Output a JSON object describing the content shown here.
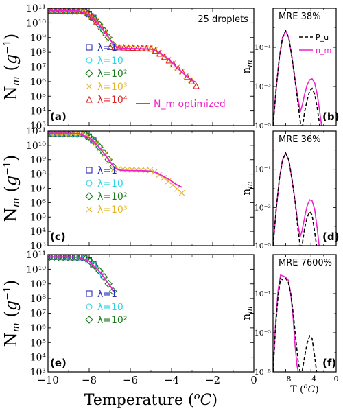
{
  "chart_data": [
    {
      "id": "a",
      "type": "scatter",
      "panel_label": "(a)",
      "annotation": "25 droplets",
      "ylabel": "N_m (g^-1)",
      "xlabel": "",
      "xlim": [
        -10,
        0
      ],
      "ylim": [
        1000,
        100000000000
      ],
      "yscale": "log",
      "series": [
        {
          "name": "λ=1",
          "marker": "square",
          "color": "#2a2ab8",
          "T_end": -7.8
        },
        {
          "name": "λ=10",
          "marker": "circle",
          "color": "#2fd3e6",
          "T_end": -7.2
        },
        {
          "name": "λ=10²",
          "marker": "diamond",
          "color": "#1a7a1a",
          "T_end": -6.8
        },
        {
          "name": "λ=10³",
          "marker": "x",
          "color": "#e6b422",
          "T_end": -2.9
        },
        {
          "name": "λ=10⁴",
          "marker": "triangle",
          "color": "#e02020",
          "T_end": -2.8
        }
      ],
      "fit": {
        "name": "N_m optimized",
        "color": "#ee22cc",
        "x": [
          -10,
          -9,
          -8.5,
          -8,
          -7.6,
          -7.3,
          -7,
          -6.8,
          -6.6,
          -6.4,
          -6,
          -5.5,
          -5,
          -4.8,
          -4.5,
          -4.2,
          -3.9,
          -3.6,
          -3.3,
          -3.0,
          -2.8
        ],
        "y": [
          70000000000,
          70000000000,
          65000000000,
          35000000000,
          10000000000,
          3000000000,
          800000000,
          300000000,
          200000000,
          180000000,
          175000000,
          170000000,
          160000000,
          130000000,
          80000000,
          40000000,
          15000000,
          6000000,
          2500000,
          1200000,
          900000
        ]
      }
    },
    {
      "id": "b",
      "type": "line",
      "panel_label": "(b)",
      "annotation": "MRE 38%",
      "ylabel": "n_m",
      "xlim": [
        -10,
        0
      ],
      "ylim": [
        1e-05,
        10
      ],
      "yscale": "log",
      "series": [
        {
          "name": "P_u",
          "color": "#000000",
          "dash": true,
          "x": [
            -10,
            -9.5,
            -9,
            -8.5,
            -8,
            -7.5,
            -7,
            -6.5,
            -6,
            -5.6,
            -5.3,
            -5,
            -4.6,
            -4.2,
            -3.8,
            -3.4,
            -3,
            -2.6
          ],
          "y": [
            1e-05,
            0.0008,
            0.03,
            0.3,
            0.7,
            0.3,
            0.03,
            0.002,
            0.0001,
            1e-05,
            1e-05,
            5e-05,
            0.0002,
            0.0006,
            0.0008,
            0.0004,
            8e-05,
            1e-05
          ]
        },
        {
          "name": "n_m",
          "color": "#ee22cc",
          "dash": false,
          "x": [
            -10,
            -9.5,
            -9,
            -8.5,
            -8,
            -7.5,
            -7,
            -6.5,
            -6,
            -5.7,
            -5.4,
            -5,
            -4.6,
            -4.2,
            -3.8,
            -3.4,
            -3,
            -2.6,
            -2.3
          ],
          "y": [
            1e-05,
            0.0008,
            0.03,
            0.3,
            0.7,
            0.3,
            0.03,
            0.002,
            0.0002,
            5e-05,
            0.0001,
            0.0004,
            0.0012,
            0.0022,
            0.0025,
            0.0015,
            0.0004,
            5e-05,
            1e-05
          ]
        }
      ]
    },
    {
      "id": "c",
      "type": "scatter",
      "panel_label": "(c)",
      "ylabel": "N_m (g^-1)",
      "xlim": [
        -10,
        0
      ],
      "ylim": [
        1000,
        100000000000
      ],
      "yscale": "log",
      "series": [
        {
          "name": "λ=1",
          "marker": "square",
          "color": "#2a2ab8",
          "T_end": -7.8
        },
        {
          "name": "λ=10",
          "marker": "circle",
          "color": "#2fd3e6",
          "T_end": -7.2
        },
        {
          "name": "λ=10²",
          "marker": "diamond",
          "color": "#1a7a1a",
          "T_end": -6.8
        },
        {
          "name": "λ=10³",
          "marker": "x",
          "color": "#e6b422",
          "T_end": -3.5
        }
      ],
      "fit": {
        "name": "",
        "color": "#ee22cc",
        "x": [
          -10,
          -9,
          -8.5,
          -8,
          -7.6,
          -7.3,
          -7,
          -6.8,
          -6.6,
          -6.4,
          -6,
          -5.5,
          -5,
          -4.7,
          -4.4,
          -4.1,
          -3.8,
          -3.5
        ],
        "y": [
          70000000000,
          70000000000,
          65000000000,
          35000000000,
          10000000000,
          3000000000,
          800000000,
          300000000,
          200000000,
          180000000,
          175000000,
          170000000,
          160000000,
          120000000,
          70000000,
          40000000,
          20000000,
          12000000
        ]
      }
    },
    {
      "id": "d",
      "type": "line",
      "panel_label": "(d)",
      "annotation": "MRE 36%",
      "ylabel": "n_m",
      "xlim": [
        -10,
        0
      ],
      "ylim": [
        1e-05,
        10
      ],
      "yscale": "log",
      "series": [
        {
          "name": "P_u",
          "color": "#000000",
          "dash": true,
          "x": [
            -10,
            -9.5,
            -9,
            -8.5,
            -8,
            -7.5,
            -7,
            -6.5,
            -6,
            -5.7,
            -5.4,
            -5,
            -4.6,
            -4.2,
            -3.8,
            -3.4,
            -3.1
          ],
          "y": [
            1e-05,
            0.0008,
            0.03,
            0.3,
            0.7,
            0.3,
            0.03,
            0.002,
            5e-05,
            1e-05,
            1e-05,
            8e-05,
            0.0003,
            0.0006,
            0.0004,
            5e-05,
            1e-05
          ]
        },
        {
          "name": "n_m",
          "color": "#ee22cc",
          "dash": false,
          "x": [
            -10,
            -9.5,
            -9,
            -8.5,
            -8,
            -7.5,
            -7,
            -6.5,
            -6,
            -5.7,
            -5.4,
            -5,
            -4.6,
            -4.2,
            -3.8,
            -3.4,
            -3,
            -2.7
          ],
          "y": [
            1e-05,
            0.0008,
            0.03,
            0.3,
            0.7,
            0.3,
            0.03,
            0.002,
            0.0001,
            3e-05,
            6e-05,
            0.0003,
            0.0012,
            0.0025,
            0.0022,
            0.0008,
            8e-05,
            1e-05
          ]
        }
      ]
    },
    {
      "id": "e",
      "type": "scatter",
      "panel_label": "(e)",
      "ylabel": "N_m (g^-1)",
      "xlabel": "Temperature (°C)",
      "xlim": [
        -10,
        0
      ],
      "ylim": [
        1000,
        100000000000
      ],
      "yscale": "log",
      "xticks": [
        -10,
        -8,
        -6,
        -4,
        -2,
        0
      ],
      "series": [
        {
          "name": "λ=1",
          "marker": "square",
          "color": "#2a2ab8",
          "T_end": -7.8
        },
        {
          "name": "λ=10",
          "marker": "circle",
          "color": "#2fd3e6",
          "T_end": -7.2
        },
        {
          "name": "λ=10²",
          "marker": "diamond",
          "color": "#1a7a1a",
          "T_end": -6.8
        }
      ],
      "fit": {
        "name": "",
        "color": "#ee22cc",
        "x": [
          -10,
          -9,
          -8.5,
          -8,
          -7.6,
          -7.3,
          -7,
          -6.8
        ],
        "y": [
          70000000000,
          70000000000,
          65000000000,
          35000000000,
          10000000000,
          3000000000,
          800000000,
          300000000
        ]
      }
    },
    {
      "id": "f",
      "type": "line",
      "panel_label": "(f)",
      "annotation": "MRE 7600%",
      "ylabel": "n_m",
      "xlabel": "T (°C)",
      "xlim": [
        -10,
        0
      ],
      "ylim": [
        1e-05,
        10
      ],
      "yscale": "log",
      "xticks": [
        -8,
        -4,
        0
      ],
      "series": [
        {
          "name": "P_u",
          "color": "#000000",
          "dash": true,
          "x": [
            -10,
            -9.6,
            -9.2,
            -8.8,
            -8.4,
            -8,
            -7.6,
            -7.2,
            -6.8,
            -6.4,
            -6,
            -5.7,
            -5.4,
            -5,
            -4.6,
            -4.2,
            -3.8,
            -3.4,
            -3.1
          ],
          "y": [
            1e-05,
            0.002,
            0.08,
            0.6,
            0.5,
            0.6,
            0.4,
            0.1,
            0.01,
            0.0005,
            3e-05,
            1e-05,
            1e-05,
            6e-05,
            0.0003,
            0.0007,
            0.0005,
            6e-05,
            1e-05
          ]
        },
        {
          "name": "n_m",
          "color": "#ee22cc",
          "dash": false,
          "x": [
            -10,
            -9.6,
            -9.2,
            -8.8,
            -8.4,
            -8,
            -7.6,
            -7.2,
            -6.8,
            -6.5,
            -6.2,
            -6
          ],
          "y": [
            1e-05,
            0.003,
            0.15,
            0.9,
            0.8,
            0.7,
            0.5,
            0.1,
            0.005,
            0.0002,
            2e-05,
            1e-05
          ]
        }
      ]
    }
  ],
  "tick_labels": {
    "left_y": [
      "10³",
      "10⁴",
      "10⁵",
      "10⁶",
      "10⁷",
      "10⁸",
      "10⁹",
      "10¹⁰",
      "10¹¹"
    ],
    "right_y": [
      "10⁻⁵",
      "10⁻³",
      "10⁻¹"
    ],
    "left_x": [
      "−10",
      "−8",
      "−6",
      "−4",
      "−2",
      "0"
    ],
    "right_x": [
      "−8",
      "−4",
      "0"
    ]
  }
}
